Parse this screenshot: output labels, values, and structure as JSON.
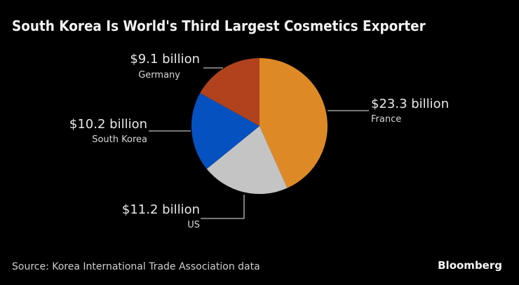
{
  "title": "South Korea Is World's Third Largest Cosmetics Exporter",
  "source": "Source: Korea International Trade Association data",
  "logo": "Bloomberg",
  "chart_data": {
    "type": "pie",
    "title": "South Korea Is World's Third Largest Cosmetics Exporter",
    "unit": "billion USD",
    "categories": [
      "France",
      "US",
      "South Korea",
      "Germany"
    ],
    "values": [
      23.3,
      11.2,
      10.2,
      9.1
    ],
    "colors": [
      "#dd8a26",
      "#c4c4c4",
      "#0651c0",
      "#b0421e"
    ],
    "labels": [
      {
        "value": "$23.3 billion",
        "name": "France"
      },
      {
        "value": "$11.2 billion",
        "name": "US"
      },
      {
        "value": "$10.2 billion",
        "name": "South Korea"
      },
      {
        "value": "$9.1 billion",
        "name": "Germany"
      }
    ],
    "start_angle": "12 o'clock",
    "direction": "clockwise",
    "legend": "none (direct labels)"
  }
}
